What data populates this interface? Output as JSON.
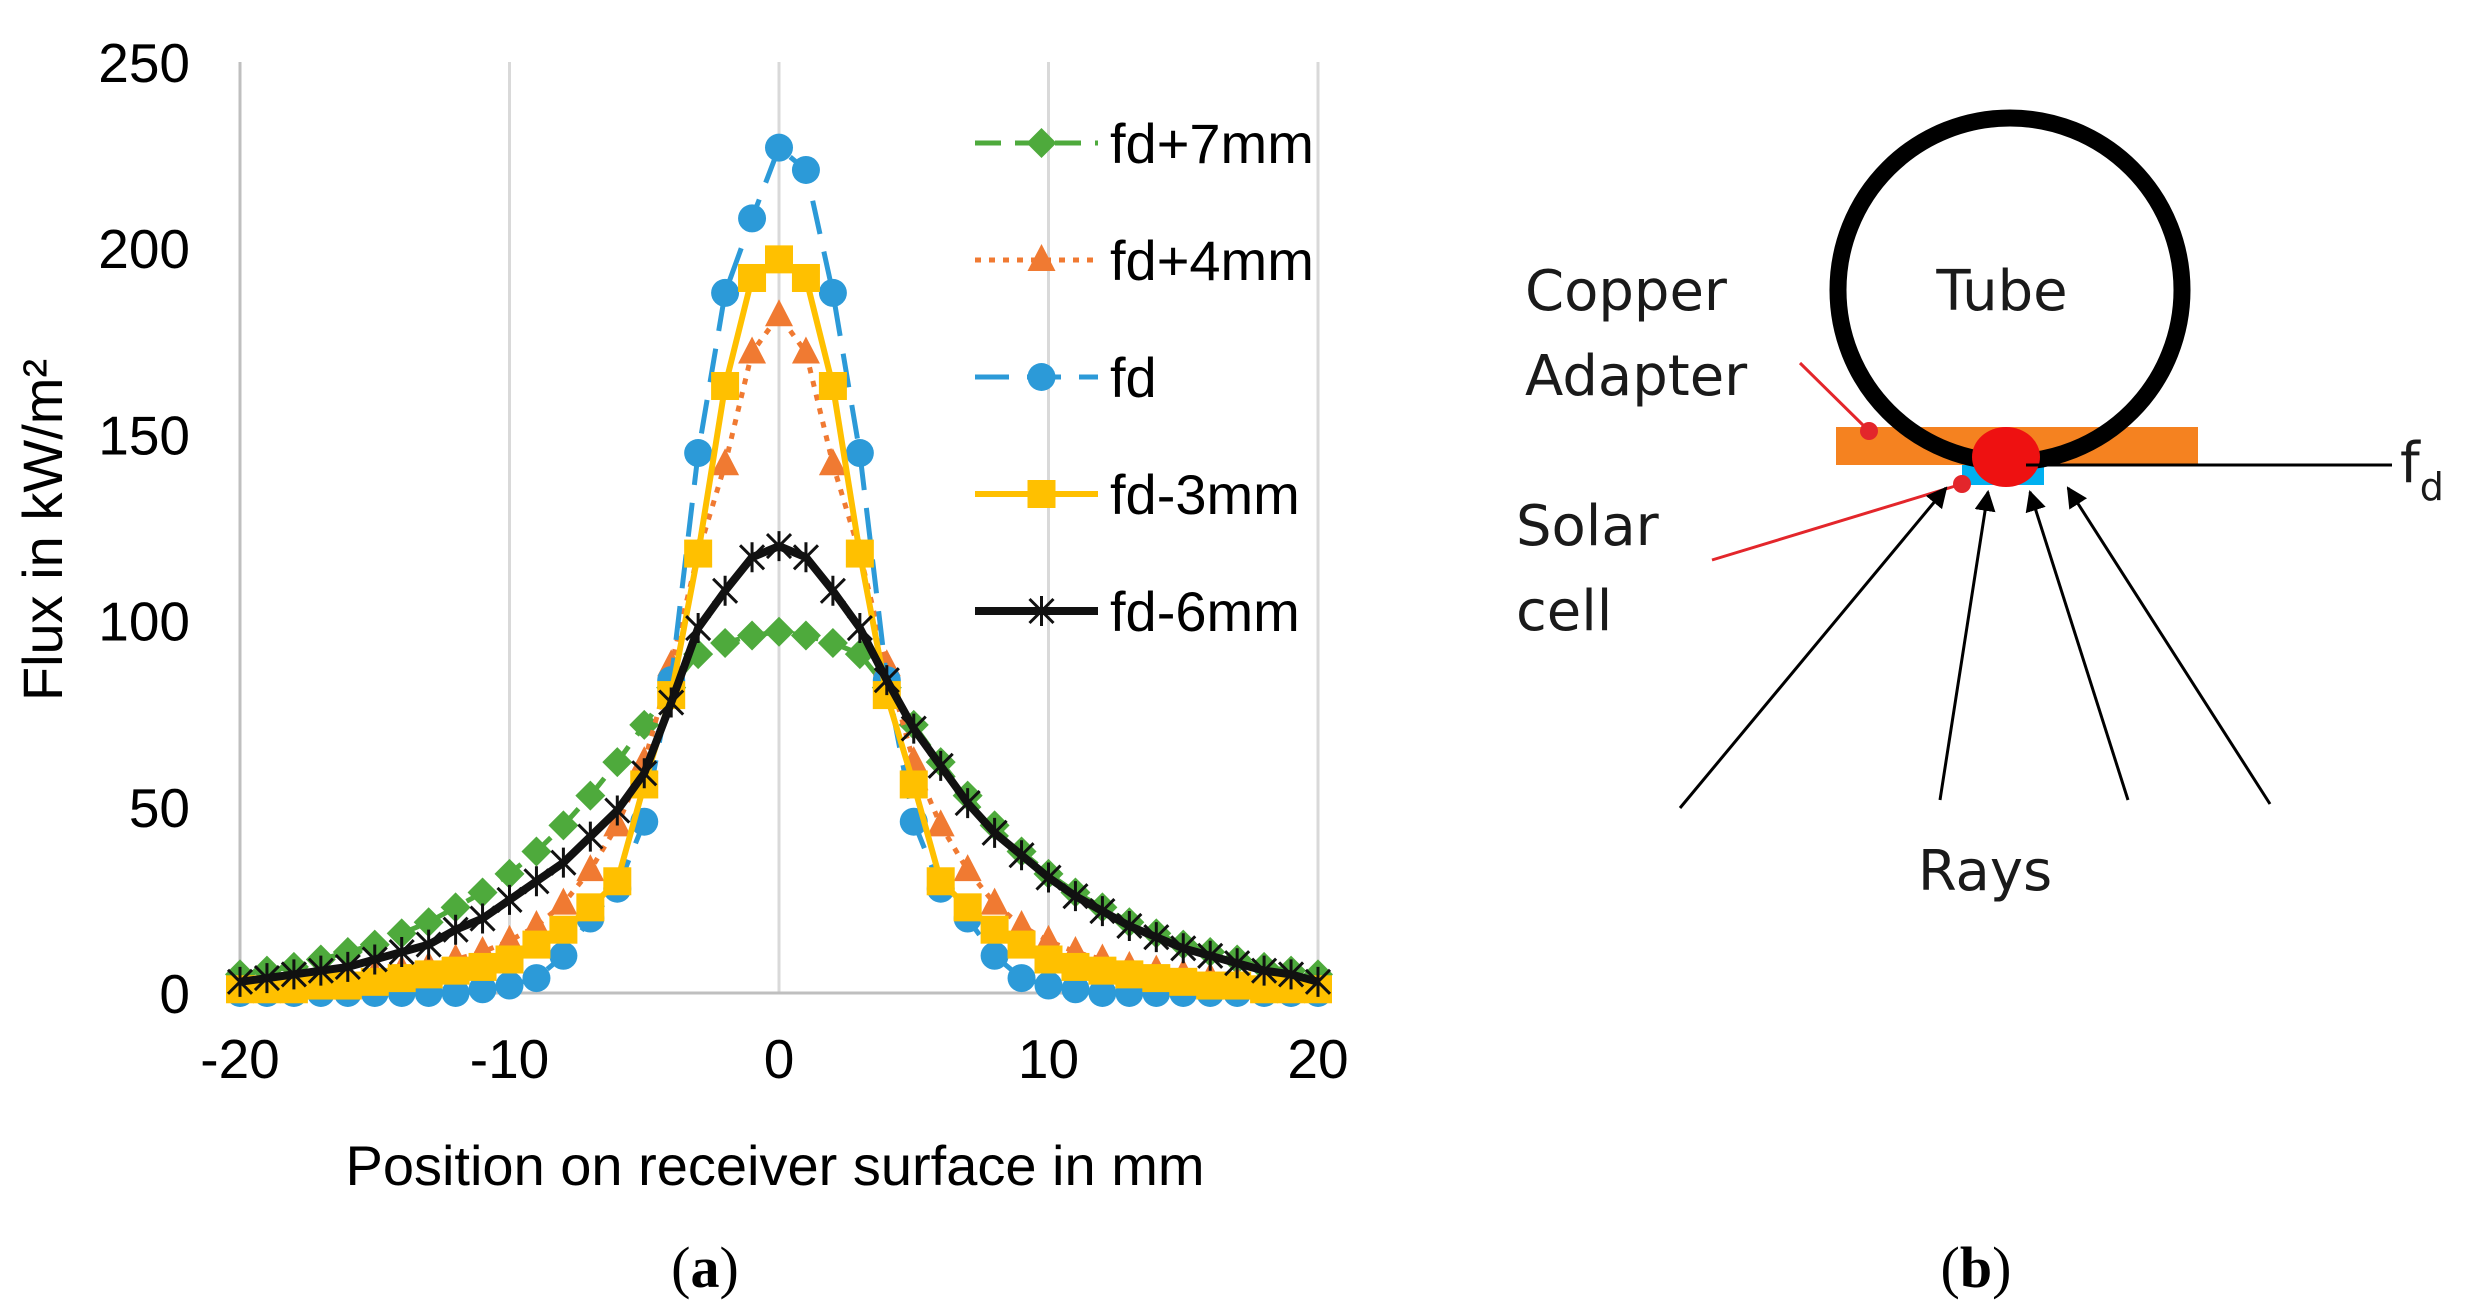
{
  "chart_data": {
    "type": "line",
    "title": "",
    "xlabel": "Position on receiver surface in mm",
    "ylabel": "Flux in kW/m²",
    "xlim": [
      -20,
      20
    ],
    "ylim": [
      0,
      250
    ],
    "x_ticks": [
      "-20",
      "-10",
      "0",
      "10",
      "20"
    ],
    "y_ticks": [
      "0",
      "50",
      "100",
      "150",
      "200",
      "250"
    ],
    "x": [
      -20,
      -19,
      -18,
      -17,
      -16,
      -15,
      -14,
      -13,
      -12,
      -11,
      -10,
      -9,
      -8,
      -7,
      -6,
      -5,
      -4,
      -3,
      -2,
      -1,
      0,
      1,
      2,
      3,
      4,
      5,
      6,
      7,
      8,
      9,
      10,
      11,
      12,
      13,
      14,
      15,
      16,
      17,
      18,
      19,
      20
    ],
    "series": [
      {
        "name": "fd+7mm",
        "color": "#4eaa3c",
        "marker": "diamond",
        "dash": "dash",
        "values": [
          5,
          6,
          7,
          9,
          11,
          13,
          16,
          19,
          23,
          27,
          32,
          38,
          45,
          53,
          62,
          72,
          82,
          91,
          94,
          96,
          97,
          96,
          94,
          91,
          82,
          72,
          62,
          53,
          45,
          38,
          32,
          27,
          23,
          19,
          16,
          13,
          11,
          9,
          7,
          6,
          5
        ]
      },
      {
        "name": "fd+4mm",
        "color": "#f07a32",
        "marker": "triangle",
        "dash": "dot",
        "values": [
          1,
          1,
          2,
          3,
          4,
          5,
          6,
          7,
          9,
          11,
          14,
          18,
          24,
          33,
          45,
          62,
          88,
          118,
          142,
          172,
          182,
          172,
          142,
          118,
          88,
          62,
          45,
          33,
          24,
          18,
          14,
          11,
          9,
          7,
          6,
          5,
          4,
          3,
          2,
          1,
          1
        ]
      },
      {
        "name": "fd",
        "color": "#2c9ad8",
        "marker": "circle",
        "dash": "longdash",
        "values": [
          0,
          0,
          0,
          0,
          0,
          0,
          0,
          0,
          0,
          1,
          2,
          4,
          10,
          20,
          28,
          46,
          84,
          145,
          188,
          208,
          227,
          221,
          188,
          145,
          84,
          46,
          28,
          20,
          10,
          4,
          2,
          1,
          0,
          0,
          0,
          0,
          0,
          0,
          0,
          0,
          0
        ]
      },
      {
        "name": "fd-3mm",
        "color": "#ffc000",
        "marker": "square",
        "dash": "solid",
        "values": [
          1,
          1,
          1,
          2,
          2,
          3,
          4,
          5,
          6,
          7,
          9,
          13,
          17,
          23,
          30,
          56,
          80,
          118,
          163,
          192,
          197,
          192,
          163,
          118,
          80,
          56,
          30,
          23,
          17,
          13,
          9,
          7,
          6,
          5,
          4,
          3,
          2,
          2,
          1,
          1,
          1
        ]
      },
      {
        "name": "fd-6mm",
        "color": "#111111",
        "marker": "star",
        "dash": "solid",
        "values": [
          3,
          4,
          5,
          6,
          7,
          9,
          11,
          13,
          17,
          20,
          25,
          30,
          35,
          42,
          49,
          59,
          78,
          98,
          108,
          117,
          120,
          117,
          108,
          98,
          84,
          71,
          61,
          51,
          43,
          37,
          31,
          26,
          22,
          18,
          15,
          12,
          10,
          8,
          6,
          5,
          3
        ]
      }
    ]
  },
  "diagram": {
    "tube_label": "Tube",
    "copper_label_line1": "Copper",
    "copper_label_line2": "Adapter",
    "solar_label_line1": "Solar",
    "solar_label_line2": "cell",
    "rays_label": "Rays",
    "focus_label": "f",
    "focus_subscript": "d",
    "colors": {
      "copper": "#f58220",
      "solar": "#00b0f0",
      "focus": "#ee1111",
      "pointer": "#e3262b"
    }
  },
  "captions": {
    "a_open": "(",
    "a_letter": "a",
    "a_close": ")",
    "b_open": "(",
    "b_letter": "b",
    "b_close": ")"
  }
}
